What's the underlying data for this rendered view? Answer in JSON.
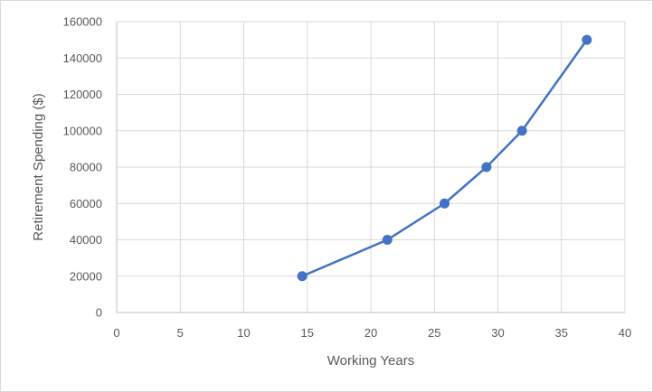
{
  "chart_data": {
    "type": "scatter",
    "title": "",
    "xlabel": "Working Years",
    "ylabel": "Retirement Spending ($)",
    "xlim": [
      0,
      40
    ],
    "ylim": [
      0,
      160000
    ],
    "x_ticks": [
      0,
      5,
      10,
      15,
      20,
      25,
      30,
      35,
      40
    ],
    "y_ticks": [
      0,
      20000,
      40000,
      60000,
      80000,
      100000,
      120000,
      140000,
      160000
    ],
    "x_tick_labels": [
      "0",
      "5",
      "10",
      "15",
      "20",
      "25",
      "30",
      "35",
      "40"
    ],
    "y_tick_labels": [
      "0",
      "20000",
      "40000",
      "60000",
      "80000",
      "100000",
      "120000",
      "140000",
      "160000"
    ],
    "grid": true,
    "legend": "none",
    "series": [
      {
        "color": "#4472c4",
        "style": "line-with-markers",
        "points": [
          {
            "x": 14.6,
            "y": 20000
          },
          {
            "x": 21.3,
            "y": 40000
          },
          {
            "x": 25.8,
            "y": 60000
          },
          {
            "x": 29.1,
            "y": 80000
          },
          {
            "x": 31.9,
            "y": 100000
          },
          {
            "x": 37.0,
            "y": 150000
          }
        ]
      }
    ],
    "colors": {
      "series": "#4472c4",
      "grid": "#d9d9d9",
      "axis": "#bfbfbf",
      "text": "#595959"
    }
  }
}
